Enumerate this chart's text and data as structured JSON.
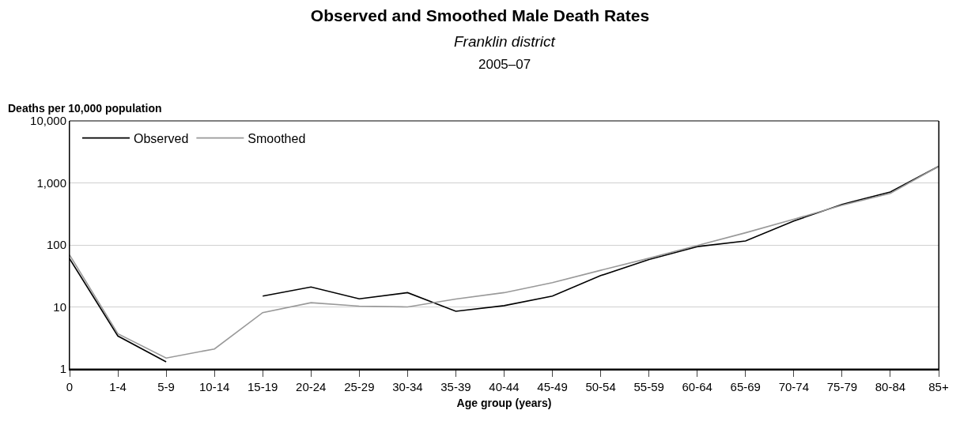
{
  "chart_data": {
    "type": "line",
    "title": "Observed and Smoothed Male Death Rates",
    "subtitle": "Franklin district",
    "annotations": [
      "2005–07"
    ],
    "xlabel": "Age group (years)",
    "ylabel": "Deaths per 10,000 population",
    "categories": [
      "0",
      "1-4",
      "5-9",
      "10-14",
      "15-19",
      "20-24",
      "25-29",
      "30-34",
      "35-39",
      "40-44",
      "45-49",
      "50-54",
      "55-59",
      "60-64",
      "65-69",
      "70-74",
      "75-79",
      "80-84",
      "85+"
    ],
    "series": [
      {
        "name": "Observed",
        "color": "#000000",
        "values": [
          60,
          3.4,
          1.3,
          null,
          15,
          21,
          13.5,
          17,
          8.5,
          10.5,
          15,
          32,
          58,
          94,
          116,
          243,
          451,
          714,
          1850
        ]
      },
      {
        "name": "Smoothed",
        "color": "#999999",
        "values": [
          69,
          3.7,
          1.5,
          2.1,
          8.1,
          11.7,
          10.3,
          10,
          13.4,
          17,
          24.7,
          39,
          61,
          98,
          157,
          259,
          437,
          677,
          1850
        ]
      }
    ],
    "log": true,
    "ylim": [
      1,
      10000
    ],
    "yticks": [
      1,
      10,
      100,
      {
        "value": 1000,
        "label": "1,000"
      },
      {
        "value": 10000,
        "label": "10,000"
      }
    ],
    "grid": "y",
    "legend": "top left",
    "marker": "none",
    "line_style": "solid"
  }
}
